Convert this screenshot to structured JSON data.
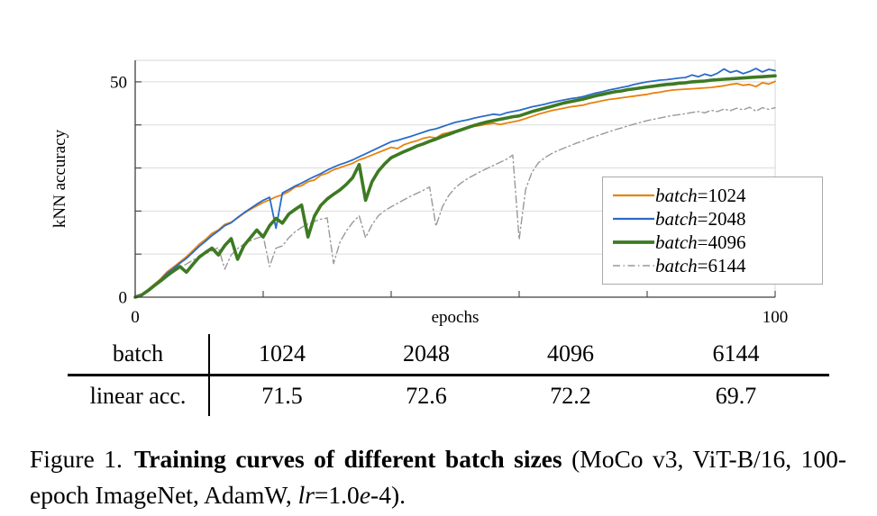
{
  "chart_data": {
    "type": "line",
    "title": "",
    "xlabel": "epochs",
    "ylabel": "kNN accuracy",
    "xlim": [
      0,
      100
    ],
    "ylim": [
      0,
      55
    ],
    "xticks": [
      0,
      20,
      40,
      60,
      80,
      100
    ],
    "xtick_labels": [
      "0",
      "",
      "",
      "",
      "",
      "100"
    ],
    "yticks": [
      0,
      10,
      20,
      30,
      40,
      50
    ],
    "ytick_labels": [
      "0",
      "",
      "",
      "",
      "",
      "50"
    ],
    "grid": "horizontal",
    "gridline_color": "#dcdcdc",
    "axis_color": "#3f3f3f",
    "border_color": "#d4d4d4",
    "legend_position": "lower right",
    "x": [
      0,
      1,
      2,
      3,
      4,
      5,
      6,
      7,
      8,
      9,
      10,
      11,
      12,
      13,
      14,
      15,
      16,
      17,
      18,
      19,
      20,
      21,
      22,
      23,
      24,
      25,
      26,
      27,
      28,
      29,
      30,
      31,
      32,
      33,
      34,
      35,
      36,
      37,
      38,
      39,
      40,
      41,
      42,
      43,
      44,
      45,
      46,
      47,
      48,
      49,
      50,
      51,
      52,
      53,
      54,
      55,
      56,
      57,
      58,
      59,
      60,
      61,
      62,
      63,
      64,
      65,
      66,
      67,
      68,
      69,
      70,
      71,
      72,
      73,
      74,
      75,
      76,
      77,
      78,
      79,
      80,
      81,
      82,
      83,
      84,
      85,
      86,
      87,
      88,
      89,
      90,
      91,
      92,
      93,
      94,
      95,
      96,
      97,
      98,
      99,
      100
    ],
    "series": [
      {
        "name": "batch=1024",
        "legend_var": "batch",
        "legend_rest": "=1024",
        "color": "#E8820D",
        "width": 1.8,
        "dash": null,
        "zorder": 2,
        "values": [
          0,
          0.6,
          1.8,
          3.0,
          4.3,
          5.9,
          7.0,
          8.2,
          9.4,
          10.8,
          12.3,
          13.4,
          14.8,
          15.6,
          16.9,
          17.4,
          18.4,
          19.5,
          20.4,
          21.2,
          22.0,
          22.6,
          23.3,
          23.8,
          24.5,
          25.6,
          25.9,
          26.8,
          27.2,
          28.3,
          28.8,
          29.6,
          30.1,
          30.6,
          31.1,
          31.9,
          32.4,
          33.0,
          33.6,
          34.2,
          34.8,
          34.5,
          35.4,
          35.9,
          36.3,
          36.9,
          37.2,
          37.0,
          37.9,
          38.2,
          38.6,
          39.0,
          39.3,
          39.7,
          39.9,
          40.2,
          40.4,
          40.1,
          40.4,
          40.7,
          41.0,
          41.5,
          42.0,
          42.5,
          42.9,
          43.3,
          43.6,
          43.9,
          44.2,
          44.4,
          44.6,
          45.0,
          45.3,
          45.6,
          45.9,
          46.1,
          46.3,
          46.5,
          46.7,
          46.9,
          47.1,
          47.4,
          47.6,
          47.9,
          48.1,
          48.2,
          48.3,
          48.4,
          48.5,
          48.6,
          48.7,
          48.9,
          49.1,
          49.4,
          49.6,
          49.2,
          49.4,
          48.9,
          49.8,
          49.5,
          50.1
        ]
      },
      {
        "name": "batch=2048",
        "legend_var": "batch",
        "legend_rest": "=2048",
        "color": "#2A6BC8",
        "width": 1.8,
        "dash": null,
        "zorder": 3,
        "values": [
          0,
          0.6,
          1.7,
          2.9,
          4.1,
          5.6,
          6.7,
          7.9,
          9.0,
          10.4,
          11.8,
          13.0,
          14.3,
          15.4,
          16.6,
          17.3,
          18.5,
          19.6,
          20.6,
          21.6,
          22.5,
          23.2,
          16.0,
          24.2,
          25.0,
          25.8,
          26.5,
          27.3,
          28.0,
          28.7,
          29.5,
          30.2,
          30.8,
          31.3,
          31.9,
          32.6,
          33.3,
          34.0,
          34.7,
          35.4,
          36.1,
          36.4,
          36.9,
          37.3,
          37.8,
          38.3,
          38.8,
          39.1,
          39.6,
          40.1,
          40.6,
          40.9,
          41.2,
          41.6,
          41.9,
          42.2,
          42.5,
          42.3,
          42.8,
          43.1,
          43.4,
          43.8,
          44.2,
          44.5,
          44.8,
          45.2,
          45.5,
          45.8,
          46.1,
          46.3,
          46.6,
          47.0,
          47.4,
          47.7,
          48.1,
          48.4,
          48.7,
          49.0,
          49.4,
          49.7,
          50.0,
          50.2,
          50.4,
          50.5,
          50.7,
          50.9,
          51.0,
          51.6,
          51.2,
          51.8,
          51.4,
          52.0,
          53.0,
          52.2,
          52.6,
          51.9,
          52.4,
          53.1,
          52.3,
          52.9,
          52.6
        ]
      },
      {
        "name": "batch=4096",
        "legend_var": "batch",
        "legend_rest": "=4096",
        "color": "#3D7A23",
        "width": 3.6,
        "dash": null,
        "zorder": 4,
        "values": [
          0,
          0.5,
          1.5,
          2.7,
          3.8,
          5.0,
          6.1,
          7.1,
          5.8,
          7.6,
          9.3,
          10.4,
          11.4,
          9.8,
          12.0,
          13.6,
          8.8,
          12.0,
          13.8,
          15.6,
          14.0,
          16.6,
          18.3,
          17.2,
          19.3,
          20.4,
          21.4,
          14.0,
          18.8,
          21.3,
          22.8,
          23.9,
          24.9,
          26.2,
          27.8,
          30.8,
          22.5,
          26.8,
          29.3,
          31.0,
          32.4,
          33.1,
          33.8,
          34.4,
          35.1,
          35.6,
          36.2,
          36.7,
          37.3,
          37.8,
          38.4,
          38.9,
          39.4,
          39.9,
          40.3,
          40.7,
          41.0,
          41.3,
          41.6,
          41.9,
          42.1,
          42.6,
          43.1,
          43.5,
          43.9,
          44.3,
          44.7,
          45.1,
          45.4,
          45.7,
          46.0,
          46.4,
          46.8,
          47.1,
          47.4,
          47.7,
          47.9,
          48.2,
          48.4,
          48.6,
          48.8,
          49.0,
          49.2,
          49.4,
          49.5,
          49.7,
          49.8,
          50.0,
          50.1,
          50.2,
          50.4,
          50.5,
          50.6,
          50.7,
          50.8,
          50.9,
          51.0,
          51.1,
          51.2,
          51.3,
          51.4
        ]
      },
      {
        "name": "batch=6144",
        "legend_var": "batch",
        "legend_rest": "=6144",
        "color": "#999999",
        "width": 1.4,
        "dash": "8 3.5 1.5 3.5",
        "zorder": 1,
        "values": [
          0,
          0.5,
          1.4,
          2.5,
          3.6,
          4.8,
          5.8,
          6.8,
          7.7,
          8.6,
          9.4,
          10.1,
          10.8,
          11.5,
          6.5,
          9.8,
          11.3,
          12.3,
          13.1,
          13.7,
          14.2,
          7.1,
          11.4,
          11.9,
          13.8,
          15.2,
          16.2,
          17.0,
          17.6,
          18.1,
          18.4,
          7.8,
          12.8,
          15.4,
          17.4,
          18.9,
          13.8,
          16.8,
          18.9,
          20.1,
          21.0,
          21.8,
          22.6,
          23.4,
          24.1,
          24.8,
          25.6,
          16.5,
          21.0,
          23.6,
          25.4,
          26.6,
          27.6,
          28.4,
          29.2,
          29.9,
          30.6,
          31.3,
          32.0,
          33.0,
          13.4,
          25.0,
          29.0,
          31.2,
          32.4,
          33.3,
          34.0,
          34.6,
          35.2,
          35.8,
          36.3,
          36.9,
          37.4,
          37.9,
          38.4,
          38.9,
          39.3,
          39.8,
          40.2,
          40.6,
          41.0,
          41.3,
          41.6,
          41.9,
          42.2,
          42.4,
          42.6,
          42.9,
          43.1,
          42.8,
          43.4,
          43.1,
          43.7,
          43.3,
          43.9,
          43.5,
          44.1,
          43.2,
          44.0,
          43.6,
          44.0
        ]
      }
    ]
  },
  "table": {
    "rows": [
      {
        "label": "batch",
        "values": [
          "1024",
          "2048",
          "4096",
          "6144"
        ]
      },
      {
        "label": "linear acc.",
        "values": [
          "71.5",
          "72.6",
          "72.2",
          "69.7"
        ]
      }
    ]
  },
  "caption": {
    "segments": [
      {
        "text": "Figure 1.",
        "style": "figlabel"
      },
      {
        "text": "Training curves of different batch sizes",
        "style": "bold"
      },
      {
        "text": " (MoCo v3, ViT-B/16, 100-epoch ImageNet, AdamW, ",
        "style": "normal"
      },
      {
        "text": "lr",
        "style": "italic"
      },
      {
        "text": "=1.0",
        "style": "normal"
      },
      {
        "text": "e",
        "style": "italic"
      },
      {
        "text": "-4).",
        "style": "normal"
      }
    ]
  }
}
